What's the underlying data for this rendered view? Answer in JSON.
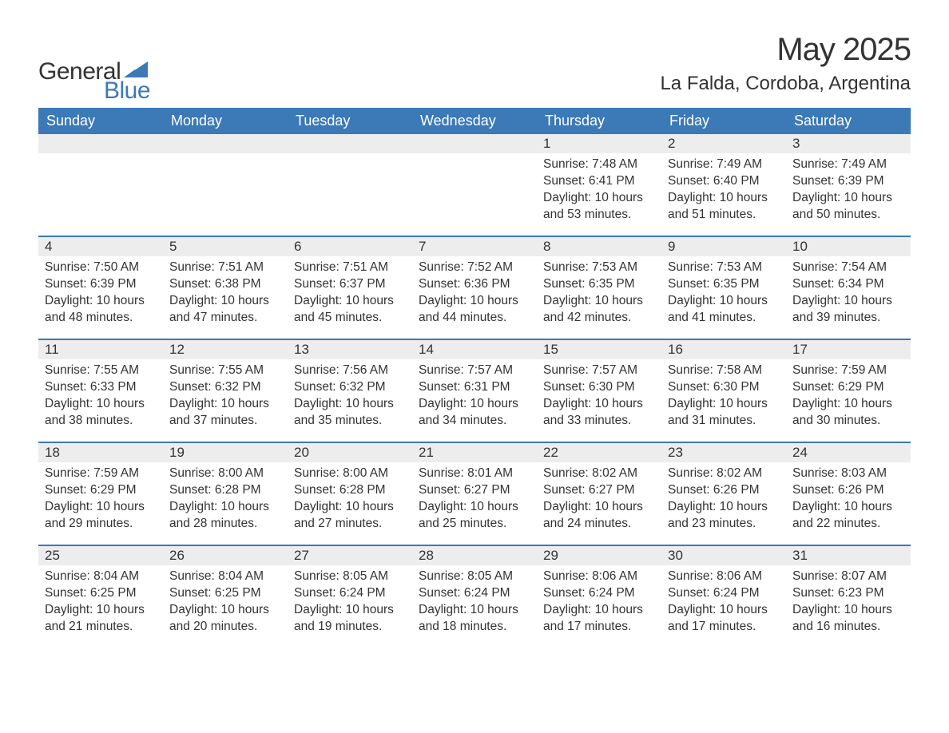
{
  "brand": {
    "name1": "General",
    "name2": "Blue",
    "accent_color": "#3b79b7"
  },
  "title": "May 2025",
  "location": "La Falda, Cordoba, Argentina",
  "day_headers": [
    "Sunday",
    "Monday",
    "Tuesday",
    "Wednesday",
    "Thursday",
    "Friday",
    "Saturday"
  ],
  "colors": {
    "header_bg": "#3b79b7",
    "header_text": "#ffffff",
    "daynum_bg": "#ededed",
    "text": "#333333",
    "page_bg": "#ffffff"
  },
  "fonts": {
    "title_size_pt": 30,
    "location_size_pt": 18,
    "header_size_pt": 14,
    "cell_size_pt": 12
  },
  "weeks": [
    [
      {
        "empty": true
      },
      {
        "empty": true
      },
      {
        "empty": true
      },
      {
        "empty": true
      },
      {
        "day": "1",
        "sunrise": "Sunrise: 7:48 AM",
        "sunset": "Sunset: 6:41 PM",
        "day1": "Daylight: 10 hours",
        "day2": "and 53 minutes."
      },
      {
        "day": "2",
        "sunrise": "Sunrise: 7:49 AM",
        "sunset": "Sunset: 6:40 PM",
        "day1": "Daylight: 10 hours",
        "day2": "and 51 minutes."
      },
      {
        "day": "3",
        "sunrise": "Sunrise: 7:49 AM",
        "sunset": "Sunset: 6:39 PM",
        "day1": "Daylight: 10 hours",
        "day2": "and 50 minutes."
      }
    ],
    [
      {
        "day": "4",
        "sunrise": "Sunrise: 7:50 AM",
        "sunset": "Sunset: 6:39 PM",
        "day1": "Daylight: 10 hours",
        "day2": "and 48 minutes."
      },
      {
        "day": "5",
        "sunrise": "Sunrise: 7:51 AM",
        "sunset": "Sunset: 6:38 PM",
        "day1": "Daylight: 10 hours",
        "day2": "and 47 minutes."
      },
      {
        "day": "6",
        "sunrise": "Sunrise: 7:51 AM",
        "sunset": "Sunset: 6:37 PM",
        "day1": "Daylight: 10 hours",
        "day2": "and 45 minutes."
      },
      {
        "day": "7",
        "sunrise": "Sunrise: 7:52 AM",
        "sunset": "Sunset: 6:36 PM",
        "day1": "Daylight: 10 hours",
        "day2": "and 44 minutes."
      },
      {
        "day": "8",
        "sunrise": "Sunrise: 7:53 AM",
        "sunset": "Sunset: 6:35 PM",
        "day1": "Daylight: 10 hours",
        "day2": "and 42 minutes."
      },
      {
        "day": "9",
        "sunrise": "Sunrise: 7:53 AM",
        "sunset": "Sunset: 6:35 PM",
        "day1": "Daylight: 10 hours",
        "day2": "and 41 minutes."
      },
      {
        "day": "10",
        "sunrise": "Sunrise: 7:54 AM",
        "sunset": "Sunset: 6:34 PM",
        "day1": "Daylight: 10 hours",
        "day2": "and 39 minutes."
      }
    ],
    [
      {
        "day": "11",
        "sunrise": "Sunrise: 7:55 AM",
        "sunset": "Sunset: 6:33 PM",
        "day1": "Daylight: 10 hours",
        "day2": "and 38 minutes."
      },
      {
        "day": "12",
        "sunrise": "Sunrise: 7:55 AM",
        "sunset": "Sunset: 6:32 PM",
        "day1": "Daylight: 10 hours",
        "day2": "and 37 minutes."
      },
      {
        "day": "13",
        "sunrise": "Sunrise: 7:56 AM",
        "sunset": "Sunset: 6:32 PM",
        "day1": "Daylight: 10 hours",
        "day2": "and 35 minutes."
      },
      {
        "day": "14",
        "sunrise": "Sunrise: 7:57 AM",
        "sunset": "Sunset: 6:31 PM",
        "day1": "Daylight: 10 hours",
        "day2": "and 34 minutes."
      },
      {
        "day": "15",
        "sunrise": "Sunrise: 7:57 AM",
        "sunset": "Sunset: 6:30 PM",
        "day1": "Daylight: 10 hours",
        "day2": "and 33 minutes."
      },
      {
        "day": "16",
        "sunrise": "Sunrise: 7:58 AM",
        "sunset": "Sunset: 6:30 PM",
        "day1": "Daylight: 10 hours",
        "day2": "and 31 minutes."
      },
      {
        "day": "17",
        "sunrise": "Sunrise: 7:59 AM",
        "sunset": "Sunset: 6:29 PM",
        "day1": "Daylight: 10 hours",
        "day2": "and 30 minutes."
      }
    ],
    [
      {
        "day": "18",
        "sunrise": "Sunrise: 7:59 AM",
        "sunset": "Sunset: 6:29 PM",
        "day1": "Daylight: 10 hours",
        "day2": "and 29 minutes."
      },
      {
        "day": "19",
        "sunrise": "Sunrise: 8:00 AM",
        "sunset": "Sunset: 6:28 PM",
        "day1": "Daylight: 10 hours",
        "day2": "and 28 minutes."
      },
      {
        "day": "20",
        "sunrise": "Sunrise: 8:00 AM",
        "sunset": "Sunset: 6:28 PM",
        "day1": "Daylight: 10 hours",
        "day2": "and 27 minutes."
      },
      {
        "day": "21",
        "sunrise": "Sunrise: 8:01 AM",
        "sunset": "Sunset: 6:27 PM",
        "day1": "Daylight: 10 hours",
        "day2": "and 25 minutes."
      },
      {
        "day": "22",
        "sunrise": "Sunrise: 8:02 AM",
        "sunset": "Sunset: 6:27 PM",
        "day1": "Daylight: 10 hours",
        "day2": "and 24 minutes."
      },
      {
        "day": "23",
        "sunrise": "Sunrise: 8:02 AM",
        "sunset": "Sunset: 6:26 PM",
        "day1": "Daylight: 10 hours",
        "day2": "and 23 minutes."
      },
      {
        "day": "24",
        "sunrise": "Sunrise: 8:03 AM",
        "sunset": "Sunset: 6:26 PM",
        "day1": "Daylight: 10 hours",
        "day2": "and 22 minutes."
      }
    ],
    [
      {
        "day": "25",
        "sunrise": "Sunrise: 8:04 AM",
        "sunset": "Sunset: 6:25 PM",
        "day1": "Daylight: 10 hours",
        "day2": "and 21 minutes."
      },
      {
        "day": "26",
        "sunrise": "Sunrise: 8:04 AM",
        "sunset": "Sunset: 6:25 PM",
        "day1": "Daylight: 10 hours",
        "day2": "and 20 minutes."
      },
      {
        "day": "27",
        "sunrise": "Sunrise: 8:05 AM",
        "sunset": "Sunset: 6:24 PM",
        "day1": "Daylight: 10 hours",
        "day2": "and 19 minutes."
      },
      {
        "day": "28",
        "sunrise": "Sunrise: 8:05 AM",
        "sunset": "Sunset: 6:24 PM",
        "day1": "Daylight: 10 hours",
        "day2": "and 18 minutes."
      },
      {
        "day": "29",
        "sunrise": "Sunrise: 8:06 AM",
        "sunset": "Sunset: 6:24 PM",
        "day1": "Daylight: 10 hours",
        "day2": "and 17 minutes."
      },
      {
        "day": "30",
        "sunrise": "Sunrise: 8:06 AM",
        "sunset": "Sunset: 6:24 PM",
        "day1": "Daylight: 10 hours",
        "day2": "and 17 minutes."
      },
      {
        "day": "31",
        "sunrise": "Sunrise: 8:07 AM",
        "sunset": "Sunset: 6:23 PM",
        "day1": "Daylight: 10 hours",
        "day2": "and 16 minutes."
      }
    ]
  ]
}
